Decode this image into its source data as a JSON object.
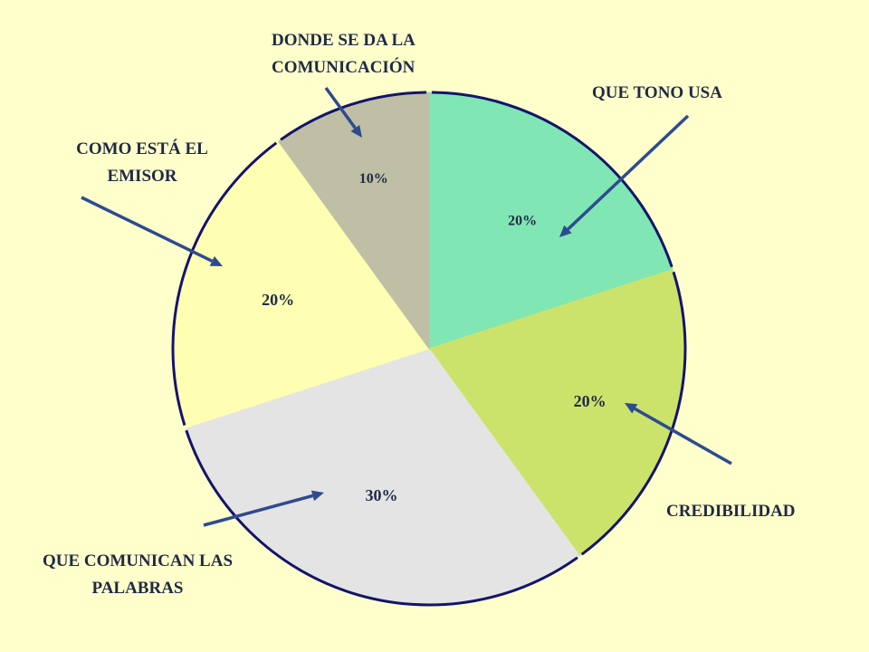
{
  "chart_data": {
    "type": "pie",
    "start_angle_deg": 0,
    "direction": "clockwise",
    "slices": [
      {
        "label": "QUE TONO USA",
        "value": 20,
        "value_label": "20%",
        "color": "#80E6B3"
      },
      {
        "label": "CREDIBILIDAD",
        "value": 20,
        "value_label": "20%",
        "color": "#CCE36B"
      },
      {
        "label": "QUE COMUNICAN LAS PALABRAS",
        "value": 30,
        "value_label": "30%",
        "color": "#E4E4E4"
      },
      {
        "label": "COMO ESTÁ EL EMISOR",
        "value": 20,
        "value_label": "20%",
        "color": "#FFFFB3"
      },
      {
        "label": "DONDE SE DA LA COMUNICACIÓN",
        "value": 10,
        "value_label": "10%",
        "color": "#BFBFA6"
      }
    ],
    "outline_color": "#14146B",
    "arrow_color": "#2E4B8F"
  },
  "labels": {
    "donde": [
      "DONDE SE DA LA",
      "COMUNICACIÓN"
    ],
    "tono": "QUE TONO USA",
    "como": [
      "COMO ESTÁ EL",
      "EMISOR"
    ],
    "credibilidad": "CREDIBILIDAD",
    "palabras": [
      "QUE COMUNICAN LAS",
      "PALABRAS"
    ]
  }
}
